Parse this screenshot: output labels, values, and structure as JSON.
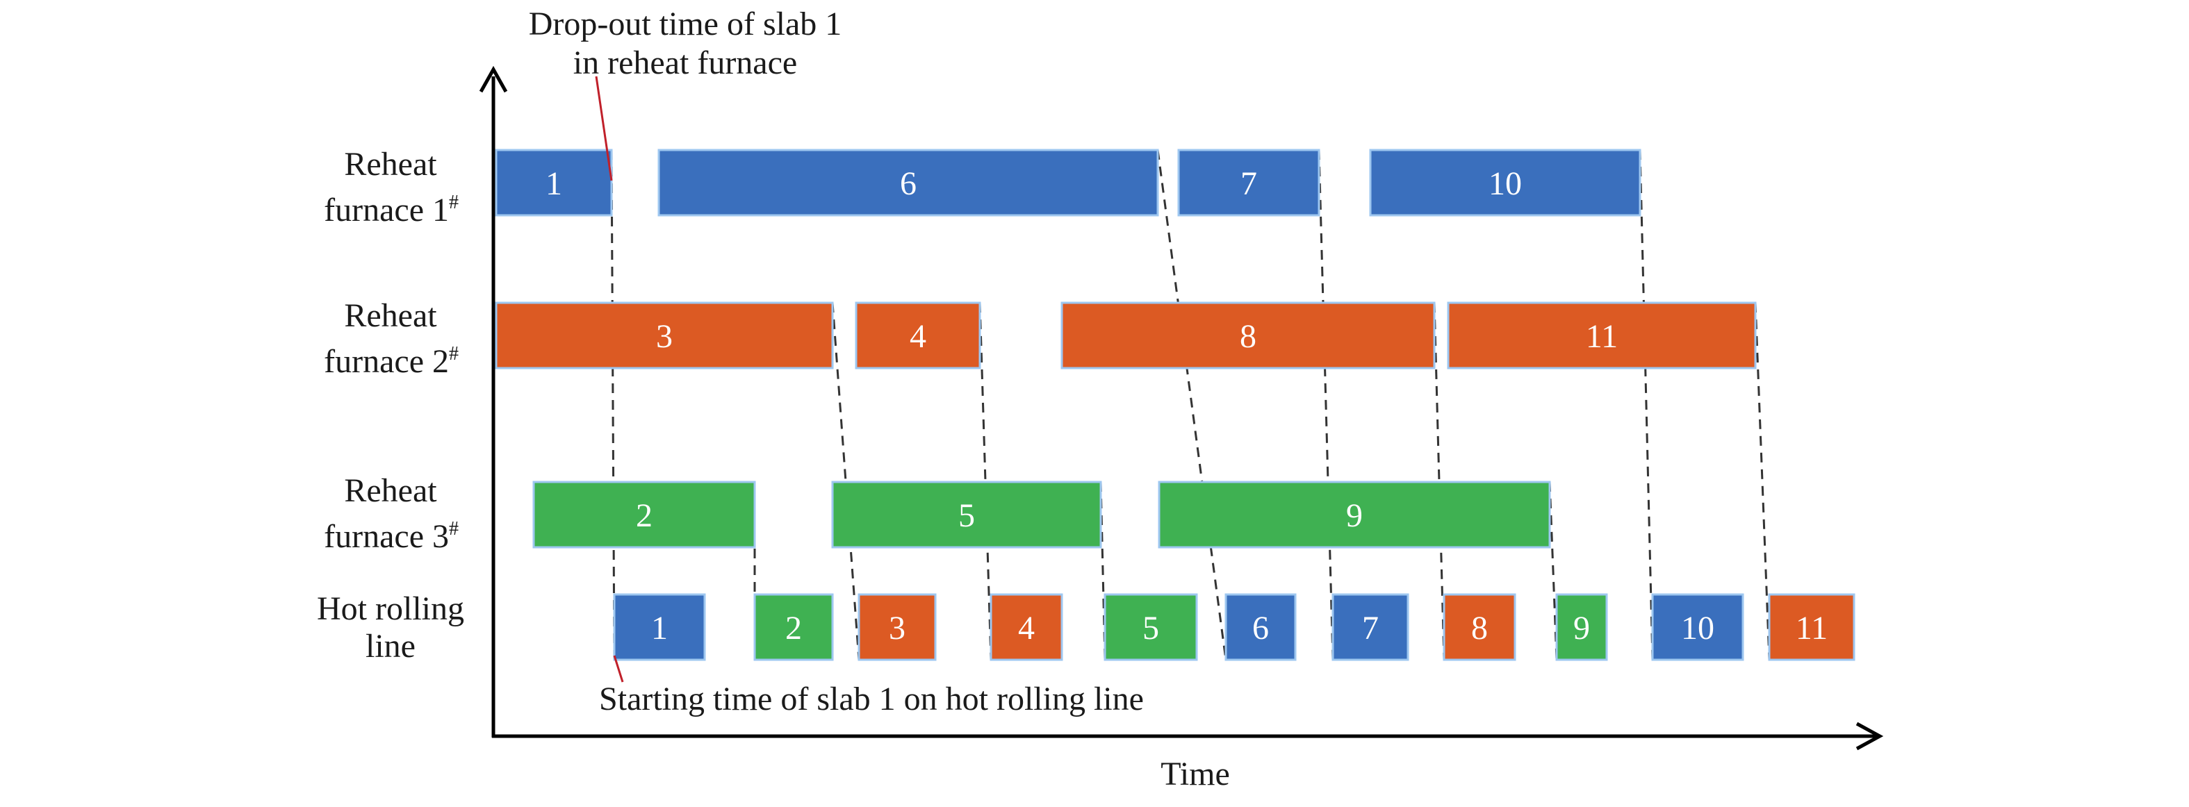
{
  "colors": {
    "furnace_1": "#3a6fbd",
    "furnace_2": "#dc5a23",
    "furnace_3": "#3fb152",
    "axis": "#000000",
    "callout": "#c0202a",
    "connector": "#333333",
    "text": "#1a1a1a",
    "block_text": "#ffffff"
  },
  "axes": {
    "x_label": "Time",
    "rows": [
      {
        "id": "furnace_1",
        "label_line1": "Reheat",
        "label_line2": "furnace 1",
        "superscript": "#"
      },
      {
        "id": "furnace_2",
        "label_line1": "Reheat",
        "label_line2": "furnace 2",
        "superscript": "#"
      },
      {
        "id": "furnace_3",
        "label_line1": "Reheat",
        "label_line2": "furnace 3",
        "superscript": "#"
      },
      {
        "id": "hot_rolling",
        "label_line1": "Hot rolling",
        "label_line2": "line",
        "superscript": ""
      }
    ]
  },
  "annotations": {
    "drop_out_line1": "Drop-out time of slab 1",
    "drop_out_line2": "in reheat furnace",
    "starting": "Starting time of slab 1 on hot rolling line"
  },
  "furnace_slabs": [
    {
      "row": "furnace_1",
      "slab": "1"
    },
    {
      "row": "furnace_1",
      "slab": "6"
    },
    {
      "row": "furnace_1",
      "slab": "7"
    },
    {
      "row": "furnace_1",
      "slab": "10"
    },
    {
      "row": "furnace_2",
      "slab": "3"
    },
    {
      "row": "furnace_2",
      "slab": "4"
    },
    {
      "row": "furnace_2",
      "slab": "8"
    },
    {
      "row": "furnace_2",
      "slab": "11"
    },
    {
      "row": "furnace_3",
      "slab": "2"
    },
    {
      "row": "furnace_3",
      "slab": "5"
    },
    {
      "row": "furnace_3",
      "slab": "9"
    }
  ],
  "rolling_slabs": [
    {
      "slab": "1",
      "furnace": "furnace_1"
    },
    {
      "slab": "2",
      "furnace": "furnace_3"
    },
    {
      "slab": "3",
      "furnace": "furnace_2"
    },
    {
      "slab": "4",
      "furnace": "furnace_2"
    },
    {
      "slab": "5",
      "furnace": "furnace_3"
    },
    {
      "slab": "6",
      "furnace": "furnace_1"
    },
    {
      "slab": "7",
      "furnace": "furnace_1"
    },
    {
      "slab": "8",
      "furnace": "furnace_2"
    },
    {
      "slab": "9",
      "furnace": "furnace_3"
    },
    {
      "slab": "10",
      "furnace": "furnace_1"
    },
    {
      "slab": "11",
      "furnace": "furnace_2"
    }
  ]
}
